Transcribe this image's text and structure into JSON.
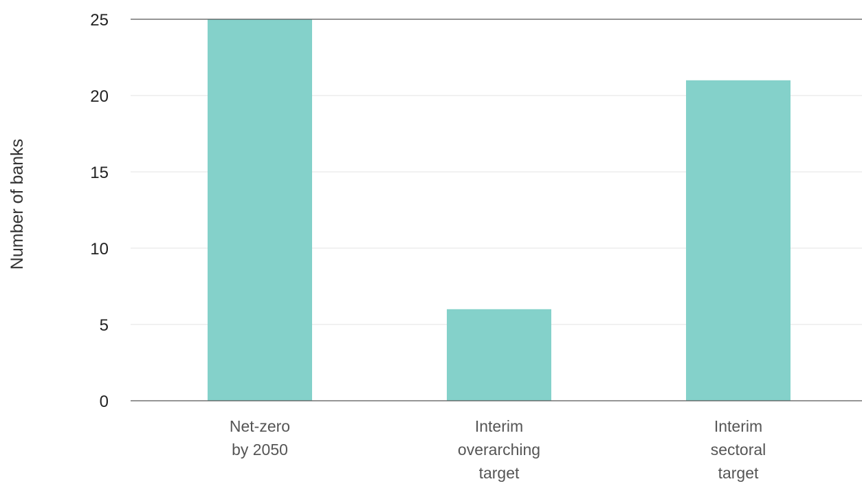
{
  "chart_data": {
    "type": "bar",
    "ylabel": "Number of banks",
    "xlabel": "",
    "ylim": [
      0,
      25
    ],
    "yticks": [
      0,
      5,
      10,
      15,
      20,
      25
    ],
    "grid": true,
    "bar_color": "#84d1ca",
    "categories": [
      {
        "label_lines": [
          "Net-zero",
          "by 2050"
        ],
        "value": 25
      },
      {
        "label_lines": [
          "Interim",
          "overarching",
          "target"
        ],
        "value": 6
      },
      {
        "label_lines": [
          "Interim",
          "sectoral",
          "target"
        ],
        "value": 21
      }
    ]
  }
}
